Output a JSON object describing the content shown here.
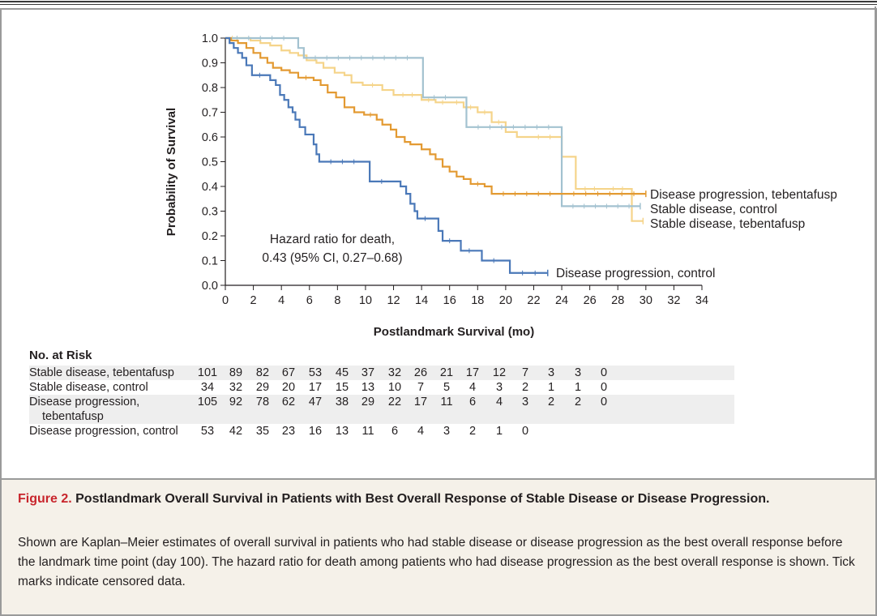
{
  "chart_data": {
    "type": "line",
    "ylabel": "Probability of Survival",
    "xlabel": "Postlandmark Survival (mo)",
    "xlim": [
      0,
      34
    ],
    "ylim": [
      0,
      1.0
    ],
    "x_ticks": [
      "0",
      "2",
      "4",
      "6",
      "8",
      "10",
      "12",
      "14",
      "16",
      "18",
      "20",
      "22",
      "24",
      "26",
      "28",
      "30",
      "32",
      "34"
    ],
    "y_ticks": [
      "0.0",
      "0.1",
      "0.2",
      "0.3",
      "0.4",
      "0.5",
      "0.6",
      "0.7",
      "0.8",
      "0.9",
      "1.0"
    ],
    "series": [
      {
        "name": "Stable disease, tebentafusp",
        "color": "#f5d48a",
        "points": [
          [
            0,
            1.0
          ],
          [
            1,
            1.0
          ],
          [
            1.8,
            0.99
          ],
          [
            2.5,
            0.98
          ],
          [
            3.2,
            0.97
          ],
          [
            4.0,
            0.95
          ],
          [
            4.6,
            0.94
          ],
          [
            5.2,
            0.93
          ],
          [
            5.8,
            0.91
          ],
          [
            6.5,
            0.9
          ],
          [
            7.0,
            0.88
          ],
          [
            7.8,
            0.86
          ],
          [
            8.5,
            0.85
          ],
          [
            9.0,
            0.82
          ],
          [
            9.8,
            0.81
          ],
          [
            11.2,
            0.79
          ],
          [
            12.0,
            0.77
          ],
          [
            14.0,
            0.75
          ],
          [
            15.0,
            0.74
          ],
          [
            16.0,
            0.74
          ],
          [
            17.0,
            0.72
          ],
          [
            18.0,
            0.7
          ],
          [
            19.0,
            0.66
          ],
          [
            20.0,
            0.62
          ],
          [
            20.8,
            0.6
          ],
          [
            21.5,
            0.6
          ],
          [
            24.0,
            0.52
          ],
          [
            24.5,
            0.52
          ],
          [
            25.0,
            0.39
          ],
          [
            27.0,
            0.39
          ],
          [
            29.0,
            0.26
          ],
          [
            29.8,
            0.26
          ]
        ]
      },
      {
        "name": "Stable disease, control",
        "color": "#a3c2d0",
        "points": [
          [
            0,
            1.0
          ],
          [
            5.0,
            1.0
          ],
          [
            5.2,
            0.96
          ],
          [
            5.6,
            0.92
          ],
          [
            13.8,
            0.92
          ],
          [
            14.1,
            0.76
          ],
          [
            16.5,
            0.76
          ],
          [
            17.2,
            0.64
          ],
          [
            23.9,
            0.64
          ],
          [
            24.0,
            0.32
          ],
          [
            29.6,
            0.32
          ]
        ]
      },
      {
        "name": "Disease progression, tebentafusp",
        "color": "#e39a32",
        "points": [
          [
            0,
            1.0
          ],
          [
            0.4,
            0.99
          ],
          [
            0.9,
            0.98
          ],
          [
            1.5,
            0.96
          ],
          [
            2.0,
            0.94
          ],
          [
            2.5,
            0.92
          ],
          [
            3.0,
            0.9
          ],
          [
            3.4,
            0.88
          ],
          [
            4.0,
            0.87
          ],
          [
            4.6,
            0.86
          ],
          [
            5.2,
            0.84
          ],
          [
            6.3,
            0.83
          ],
          [
            6.8,
            0.81
          ],
          [
            7.3,
            0.78
          ],
          [
            7.9,
            0.76
          ],
          [
            8.5,
            0.72
          ],
          [
            9.2,
            0.7
          ],
          [
            9.9,
            0.69
          ],
          [
            10.8,
            0.67
          ],
          [
            11.2,
            0.65
          ],
          [
            11.8,
            0.63
          ],
          [
            12.2,
            0.6
          ],
          [
            12.8,
            0.58
          ],
          [
            13.2,
            0.57
          ],
          [
            14.0,
            0.55
          ],
          [
            14.6,
            0.53
          ],
          [
            15.0,
            0.51
          ],
          [
            15.5,
            0.48
          ],
          [
            16.0,
            0.46
          ],
          [
            16.5,
            0.44
          ],
          [
            17.0,
            0.43
          ],
          [
            17.5,
            0.41
          ],
          [
            18.5,
            0.4
          ],
          [
            19.0,
            0.37
          ],
          [
            24.0,
            0.37
          ],
          [
            30.0,
            0.37
          ]
        ]
      },
      {
        "name": "Disease progression, control",
        "color": "#4a78b8",
        "points": [
          [
            0,
            1.0
          ],
          [
            0.3,
            0.98
          ],
          [
            0.6,
            0.96
          ],
          [
            0.9,
            0.94
          ],
          [
            1.2,
            0.92
          ],
          [
            1.5,
            0.89
          ],
          [
            1.9,
            0.85
          ],
          [
            3.0,
            0.85
          ],
          [
            3.2,
            0.83
          ],
          [
            3.6,
            0.81
          ],
          [
            3.9,
            0.77
          ],
          [
            4.2,
            0.75
          ],
          [
            4.5,
            0.72
          ],
          [
            4.8,
            0.7
          ],
          [
            5.0,
            0.67
          ],
          [
            5.3,
            0.64
          ],
          [
            5.7,
            0.61
          ],
          [
            6.0,
            0.61
          ],
          [
            6.3,
            0.57
          ],
          [
            6.5,
            0.53
          ],
          [
            6.7,
            0.5
          ],
          [
            10.0,
            0.5
          ],
          [
            10.3,
            0.42
          ],
          [
            12.0,
            0.42
          ],
          [
            12.5,
            0.4
          ],
          [
            12.9,
            0.37
          ],
          [
            13.2,
            0.33
          ],
          [
            13.5,
            0.3
          ],
          [
            13.7,
            0.27
          ],
          [
            14.8,
            0.27
          ],
          [
            15.2,
            0.22
          ],
          [
            15.5,
            0.18
          ],
          [
            16.5,
            0.18
          ],
          [
            16.8,
            0.14
          ],
          [
            18.0,
            0.14
          ],
          [
            18.3,
            0.1
          ],
          [
            20.0,
            0.1
          ],
          [
            20.3,
            0.05
          ],
          [
            23.0,
            0.05
          ]
        ]
      }
    ],
    "annotations": {
      "hr_line1": "Hazard ratio for death,",
      "hr_line2": "0.43 (95% CI, 0.27–0.68)"
    },
    "legend_labels": [
      "Disease progression, tebentafusp",
      "Stable disease, control",
      "Stable disease, tebentafusp",
      "Disease progression, control"
    ]
  },
  "risk_table": {
    "title": "No. at Risk",
    "rows": [
      {
        "label": "Stable disease, tebentafusp",
        "values": [
          "101",
          "89",
          "82",
          "67",
          "53",
          "45",
          "37",
          "32",
          "26",
          "21",
          "17",
          "12",
          "7",
          "3",
          "3",
          "0"
        ]
      },
      {
        "label": "Stable disease, control",
        "values": [
          "34",
          "32",
          "29",
          "20",
          "17",
          "15",
          "13",
          "10",
          "7",
          "5",
          "4",
          "3",
          "2",
          "1",
          "1",
          "0"
        ]
      },
      {
        "label": "Disease progression,",
        "label2": "tebentafusp",
        "values": [
          "105",
          "92",
          "78",
          "62",
          "47",
          "38",
          "29",
          "22",
          "17",
          "11",
          "6",
          "4",
          "3",
          "2",
          "2",
          "0"
        ]
      },
      {
        "label": "Disease progression, control",
        "values": [
          "53",
          "42",
          "35",
          "23",
          "16",
          "13",
          "11",
          "6",
          "4",
          "3",
          "2",
          "1",
          "0"
        ]
      }
    ]
  },
  "caption": {
    "figure_label": "Figure 2.",
    "title": " Postlandmark Overall Survival in Patients with Best Overall Response of Stable Disease or Disease Progression.",
    "body": "Shown are Kaplan–Meier estimates of overall survival in patients who had stable disease or disease progression as the best overall response before the landmark time point (day 100). The hazard ratio for death among patients who had disease progression as the best overall response is shown. Tick marks indicate censored data."
  }
}
